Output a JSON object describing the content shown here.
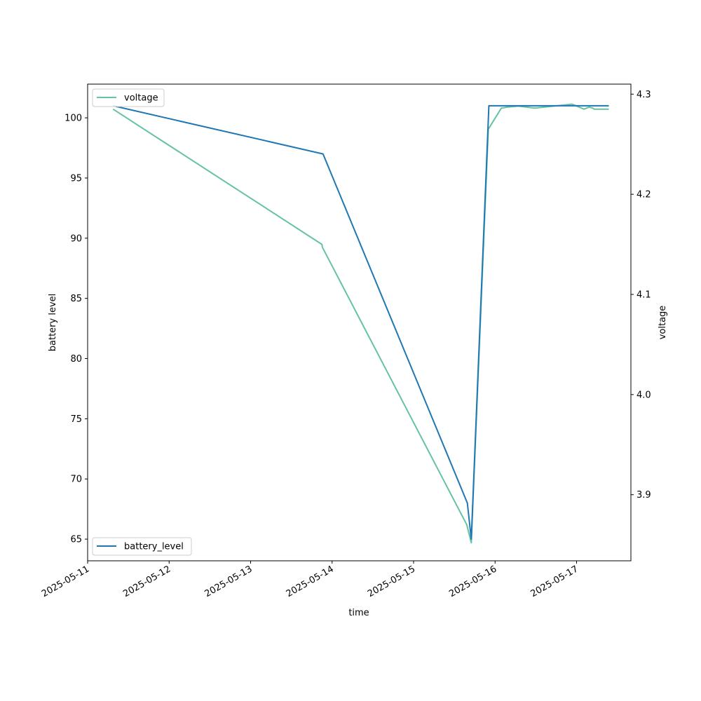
{
  "chart_data": {
    "type": "line",
    "title": "",
    "xlabel": "time",
    "ylabel_left": "battery level",
    "ylabel_right": "voltage",
    "x_ticks": [
      "2025-05-11",
      "2025-05-12",
      "2025-05-13",
      "2025-05-14",
      "2025-05-15",
      "2025-05-16",
      "2025-05-17"
    ],
    "ylim_left": [
      63.2,
      102.8
    ],
    "ylim_right": [
      3.834,
      4.31
    ],
    "y_ticks_left": [
      65,
      70,
      75,
      80,
      85,
      90,
      95,
      100
    ],
    "y_ticks_right": [
      3.9,
      4.0,
      4.1,
      4.2,
      4.3
    ],
    "y_ticks_right_labels": [
      "3.9",
      "4.0",
      "4.1",
      "4.2",
      "4.3"
    ],
    "xlim": [
      "2025-05-11T00:00",
      "2025-05-17T16:00"
    ],
    "series": [
      {
        "name": "battery_level",
        "axis": "left",
        "color": "#1f77b4",
        "points": [
          [
            "2025-05-11T07:30",
            101
          ],
          [
            "2025-05-13T21:20",
            97
          ],
          [
            "2025-05-15T15:50",
            68
          ],
          [
            "2025-05-15T17:00",
            65
          ],
          [
            "2025-05-15T22:10",
            101
          ],
          [
            "2025-05-17T09:30",
            101
          ]
        ]
      },
      {
        "name": "voltage",
        "axis": "right",
        "color": "#66c2a5",
        "points": [
          [
            "2025-05-11T07:30",
            4.285
          ],
          [
            "2025-05-13T21:00",
            4.15
          ],
          [
            "2025-05-13T21:10",
            4.147
          ],
          [
            "2025-05-15T15:40",
            3.87
          ],
          [
            "2025-05-15T17:00",
            3.852
          ],
          [
            "2025-05-15T22:00",
            4.265
          ],
          [
            "2025-05-16T01:50",
            4.286
          ],
          [
            "2025-05-16T03:30",
            4.287
          ],
          [
            "2025-05-16T06:50",
            4.288
          ],
          [
            "2025-05-16T11:40",
            4.286
          ],
          [
            "2025-05-16T22:40",
            4.29
          ],
          [
            "2025-05-17T02:10",
            4.285
          ],
          [
            "2025-05-17T03:40",
            4.287
          ],
          [
            "2025-05-17T04:50",
            4.286
          ],
          [
            "2025-05-17T05:10",
            4.285
          ],
          [
            "2025-05-17T09:30",
            4.285
          ]
        ]
      }
    ],
    "legends": [
      {
        "label": "voltage",
        "placement": "upper-left",
        "color": "#66c2a5"
      },
      {
        "label": "battery_level",
        "placement": "lower-left",
        "color": "#1f77b4"
      }
    ]
  }
}
